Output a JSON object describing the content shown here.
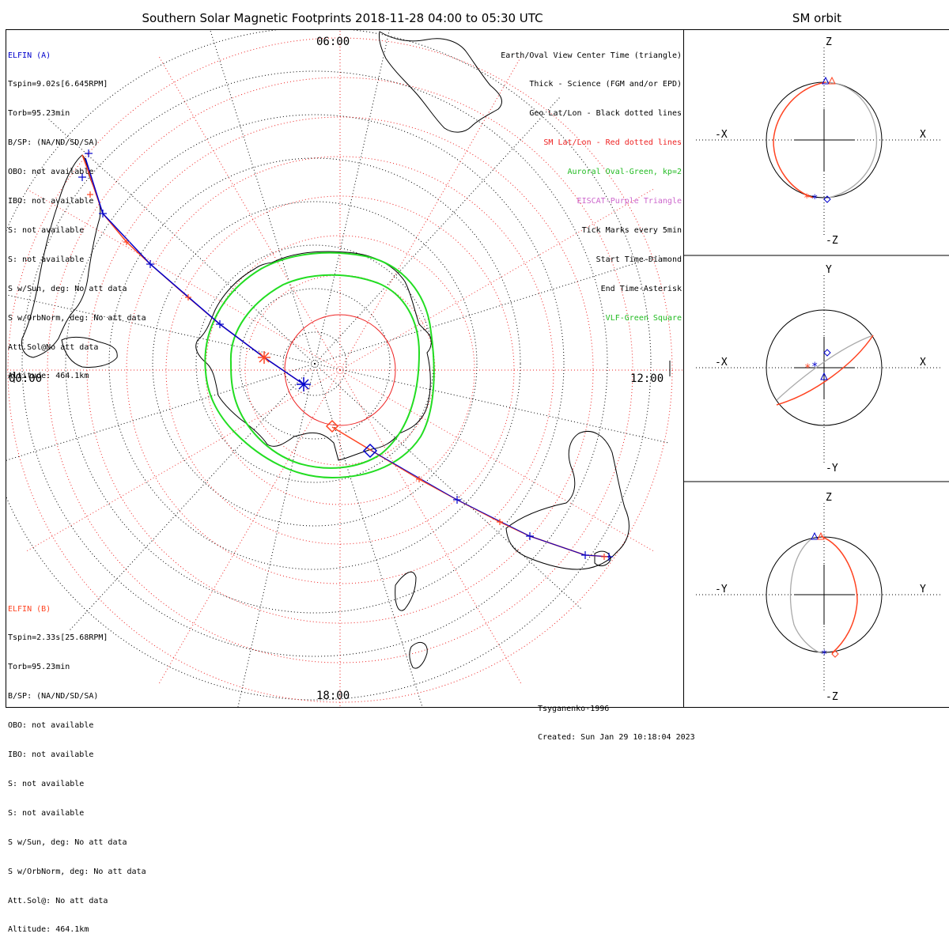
{
  "title": "Southern Solar Magnetic Footprints 2018-11-28 04:00 to 05:30 UTC",
  "side_title": "SM orbit",
  "colors": {
    "elfin_a": "#0000cc",
    "elfin_b": "#ff4422",
    "auroral_oval": "#22dd22",
    "eiscat": "#cc66cc",
    "sm_grid": "#ee2222",
    "geo_grid": "#000000",
    "orbit_gray": "#aaaaaa"
  },
  "spacecraft_a": {
    "name": "ELFIN (A)",
    "lines": [
      "Tspin=9.02s[6.645RPM]",
      "Torb=95.23min",
      "B/SP: (NA/ND/SD/SA)",
      "OBO: not available",
      "IBO: not available",
      "S: not available",
      "S: not available",
      "S w/Sun, deg: No att data",
      "S w/OrbNorm, deg: No att data",
      "Att.Sol@No att data",
      "Altitude: 464.1km"
    ]
  },
  "spacecraft_b": {
    "name": "ELFIN (B)",
    "lines": [
      "Tspin=2.33s[25.68RPM]",
      "Torb=95.23min",
      "B/SP: (NA/ND/SD/SA)",
      "OBO: not available",
      "IBO: not available",
      "S: not available",
      "S: not available",
      "S w/Sun, deg: No att data",
      "S w/OrbNorm, deg: No att data",
      "Att.Sol@: No att data",
      "Altitude: 464.1km"
    ]
  },
  "legend": [
    {
      "text": "Earth/Oval View Center Time (triangle)",
      "color": "#000000"
    },
    {
      "text": "Thick - Science (FGM and/or EPD)",
      "color": "#000000"
    },
    {
      "text": "Geo Lat/Lon - Black dotted lines",
      "color": "#000000"
    },
    {
      "text": "SM Lat/Lon - Red dotted lines",
      "color": "#ee2222"
    },
    {
      "text": "Auroral Oval-Green, kp=2",
      "color": "#22bb22"
    },
    {
      "text": "EISCAT-Purple Triangle",
      "color": "#cc66cc"
    },
    {
      "text": "Tick Marks every 5min",
      "color": "#000000"
    },
    {
      "text": "Start Time-Diamond",
      "color": "#000000"
    },
    {
      "text": "End Time-Asterisk",
      "color": "#000000"
    },
    {
      "text": "VLF-Green Square",
      "color": "#22bb22"
    }
  ],
  "credits": [
    "Tsyganenko-1996",
    "Created: Sun Jan 29 10:18:04 2023"
  ],
  "mlt_labels": {
    "top": "06:00",
    "left": "00:00",
    "right": "12:00",
    "bottom": "18:00"
  },
  "orbit_panels": [
    {
      "top_label": "Z",
      "bottom_label": "-Z",
      "left_label": "-X",
      "right_label": "X"
    },
    {
      "top_label": "Y",
      "bottom_label": "-Y",
      "left_label": "-X",
      "right_label": "X"
    },
    {
      "top_label": "Z",
      "bottom_label": "-Z",
      "left_label": "-Y",
      "right_label": "Y"
    }
  ]
}
